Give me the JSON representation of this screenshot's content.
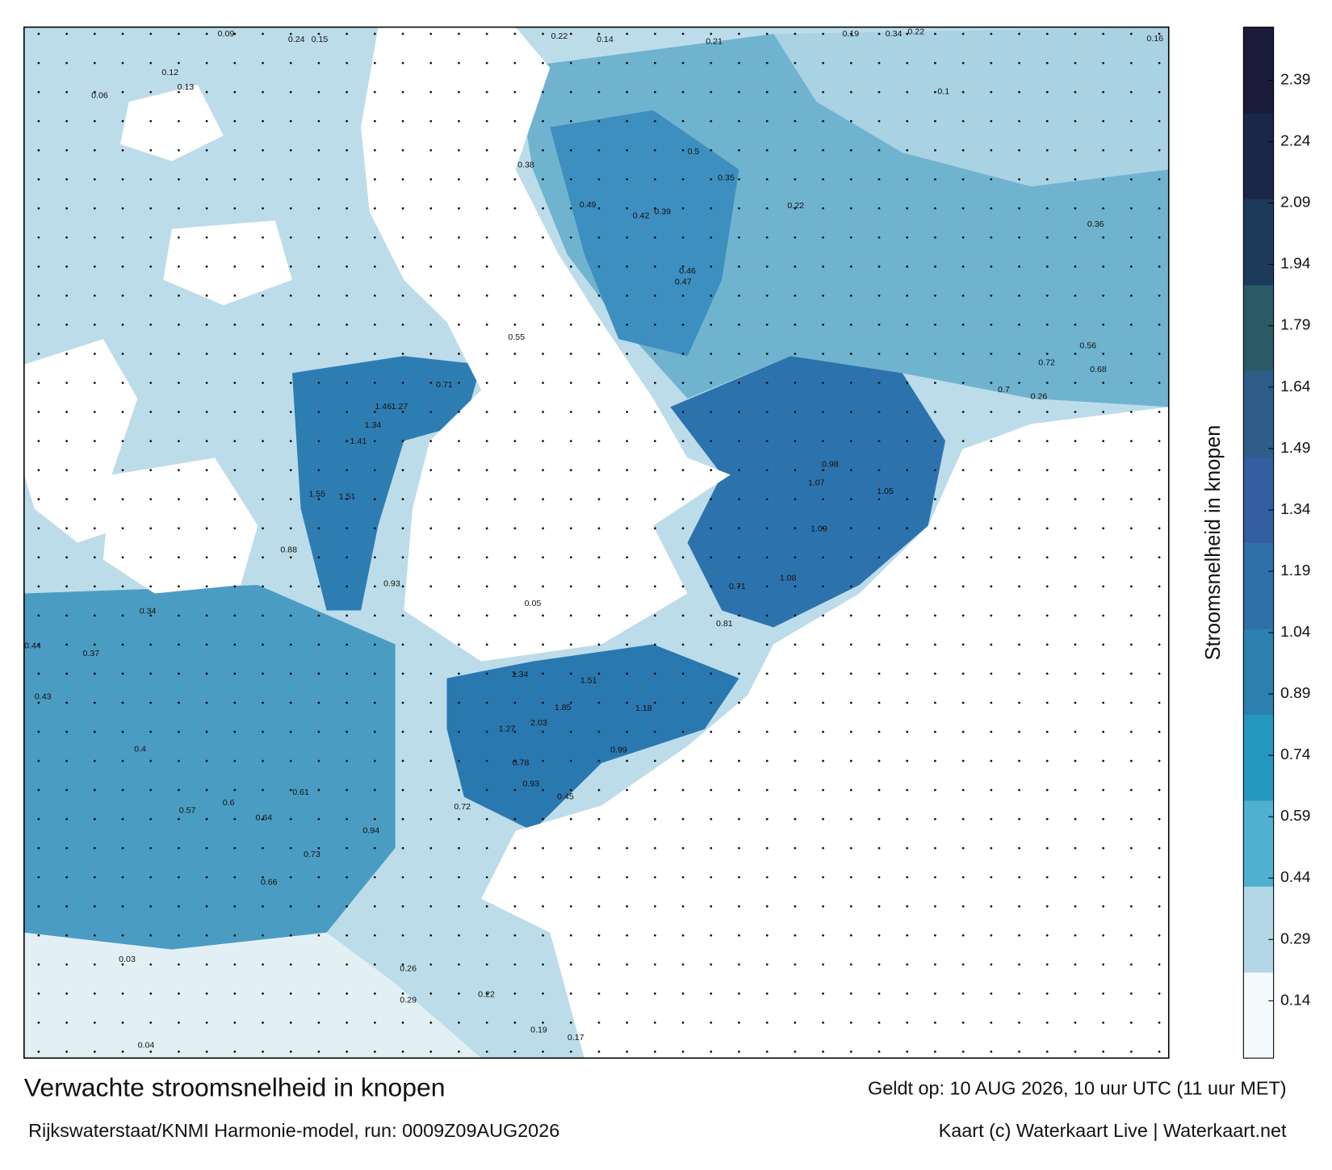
{
  "map": {
    "title": "Verwachte stroomsnelheid in knopen",
    "subtitle": "Rijkswaterstaat/KNMI Harmonie-model, run: 0009Z09AUG2026",
    "valid_time": "Geldt op: 10 AUG 2026, 10 uur UTC (11 uur MET)",
    "credit": "Kaart (c) Waterkaart Live | Waterkaart.net"
  },
  "colorbar": {
    "label": "Stroomsnelheid in knopen",
    "clim": [
      0,
      2.52
    ],
    "ticks": [
      0.14,
      0.29,
      0.44,
      0.59,
      0.74,
      0.89,
      1.04,
      1.19,
      1.34,
      1.49,
      1.64,
      1.79,
      1.94,
      2.09,
      2.24,
      2.39
    ],
    "colors": [
      "#f4f9fb",
      "#b3d7e6",
      "#4fb0cf",
      "#2497bf",
      "#2b80ad",
      "#2f6fa8",
      "#335ea0",
      "#2e5d8a",
      "#2a5a66",
      "#1d3a5a",
      "#1b2748",
      "#1b1a38"
    ]
  },
  "speed_labels": [
    "0.09",
    "0.24",
    "0.15",
    "0.22",
    "0.14",
    "0.21",
    "0.19",
    "0.34",
    "0.22",
    "0.16",
    "0.12",
    "0.13",
    "0.06",
    "0.38",
    "0.49",
    "0.42",
    "0.39",
    "0.35",
    "0.22",
    "0.1",
    "0.36",
    "0.71",
    "1.46",
    "1.27",
    "1.34",
    "1.41",
    "1.55",
    "1.51",
    "0.88",
    "0.93",
    "0.34",
    "0.37",
    "0.44",
    "0.43",
    "0.4",
    "0.57",
    "0.6",
    "0.64",
    "0.61",
    "0.66",
    "0.73",
    "0.94",
    "0.5",
    "0.46",
    "0.47",
    "0.98",
    "1.07",
    "1.05",
    "1.09",
    "1.08",
    "0.71",
    "0.81",
    "1.34",
    "1.51",
    "1.85",
    "2.03",
    "1.27",
    "1.18",
    "0.99",
    "0.78",
    "0.93",
    "0.45",
    "0.72",
    "0.04",
    "0.03",
    "0.26",
    "0.29",
    "0.22",
    "0.19",
    "0.17",
    "0.55",
    "0.72",
    "0.68",
    "0.56",
    "0.7",
    "0.26",
    "0.05"
  ]
}
